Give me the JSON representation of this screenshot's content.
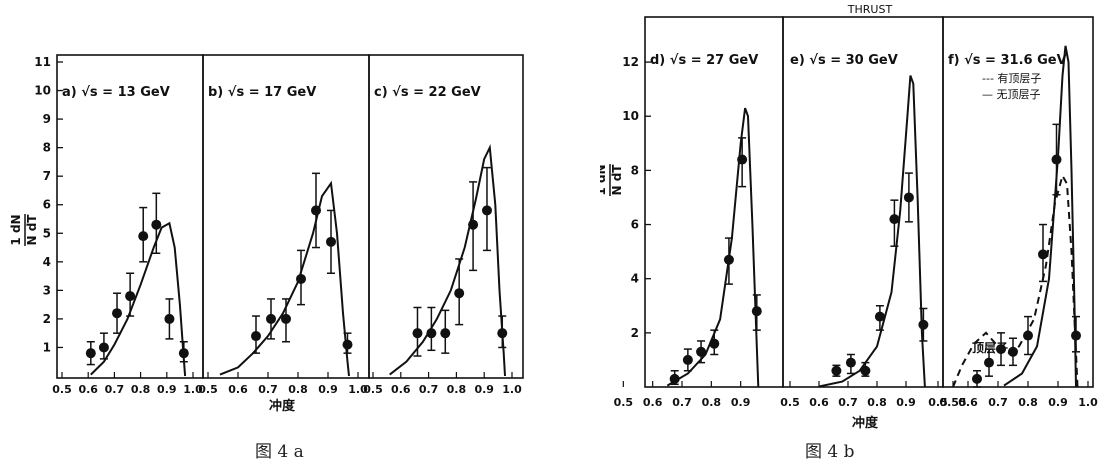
{
  "figures": [
    {
      "caption": "图 4 a",
      "xlabel": "冲度",
      "ylabel_top": "1 dN",
      "ylabel_bottom": "N dT",
      "panels": [
        {
          "label": "a) √s = 13 GeV"
        },
        {
          "label": "b) √s = 17 GeV"
        },
        {
          "label": "c) √s = 22 GeV"
        }
      ]
    },
    {
      "caption": "图 4 b",
      "title": "THRUST",
      "xlabel": "冲度",
      "ylabel_top": "1 dN",
      "ylabel_bottom": "N dT",
      "panels": [
        {
          "label": "d) √s = 27 GeV"
        },
        {
          "label": "e) √s = 30 GeV"
        },
        {
          "label": "f) √s = 31.6 GeV",
          "legend": [
            "--- 有顶层子",
            "— 无顶层子"
          ],
          "annotation": "顶层子"
        }
      ]
    }
  ],
  "chart_data": [
    {
      "type": "scatter",
      "figure": "图 4 a",
      "xlabel": "冲度",
      "ylabel": "1/N dN/dT",
      "ylim": [
        0,
        11
      ],
      "y_ticks": [
        1,
        2,
        3,
        4,
        5,
        6,
        7,
        8,
        9,
        10,
        11
      ],
      "panels": [
        {
          "label": "a) √s = 13 GeV",
          "xlim": [
            0.5,
            1.0
          ],
          "x_ticks": [
            0.5,
            0.6,
            0.7,
            0.8,
            0.9,
            1.0
          ],
          "points": [
            {
              "x": 0.61,
              "y": 0.8,
              "lo": 0.4,
              "hi": 1.2
            },
            {
              "x": 0.66,
              "y": 1.0,
              "lo": 0.6,
              "hi": 1.5
            },
            {
              "x": 0.71,
              "y": 2.2,
              "lo": 1.5,
              "hi": 2.9
            },
            {
              "x": 0.76,
              "y": 2.8,
              "lo": 2.1,
              "hi": 3.6
            },
            {
              "x": 0.81,
              "y": 4.9,
              "lo": 4.0,
              "hi": 5.9
            },
            {
              "x": 0.86,
              "y": 5.3,
              "lo": 4.3,
              "hi": 6.4
            },
            {
              "x": 0.91,
              "y": 2.0,
              "lo": 1.3,
              "hi": 2.7
            },
            {
              "x": 0.965,
              "y": 0.8,
              "lo": 0.5,
              "hi": 1.2
            }
          ],
          "curves": [
            {
              "style": "solid",
              "points": [
                [
                  0.61,
                  0.05
                ],
                [
                  0.66,
                  0.5
                ],
                [
                  0.7,
                  1.1
                ],
                [
                  0.75,
                  2.0
                ],
                [
                  0.8,
                  3.2
                ],
                [
                  0.85,
                  4.5
                ],
                [
                  0.88,
                  5.2
                ],
                [
                  0.91,
                  5.35
                ],
                [
                  0.93,
                  4.5
                ],
                [
                  0.95,
                  2.5
                ],
                [
                  0.965,
                  0.6
                ],
                [
                  0.97,
                  0.0
                ]
              ]
            }
          ]
        },
        {
          "label": "b) √s = 17 GeV",
          "xlim": [
            0.5,
            1.0
          ],
          "x_ticks": [
            0.5,
            0.6,
            0.7,
            0.8,
            0.9,
            1.0
          ],
          "points": [
            {
              "x": 0.66,
              "y": 1.4,
              "lo": 0.8,
              "hi": 2.1
            },
            {
              "x": 0.71,
              "y": 2.0,
              "lo": 1.3,
              "hi": 2.7
            },
            {
              "x": 0.76,
              "y": 2.0,
              "lo": 1.2,
              "hi": 2.7
            },
            {
              "x": 0.81,
              "y": 3.4,
              "lo": 2.5,
              "hi": 4.4
            },
            {
              "x": 0.86,
              "y": 5.8,
              "lo": 4.5,
              "hi": 7.1
            },
            {
              "x": 0.91,
              "y": 4.7,
              "lo": 3.6,
              "hi": 5.8
            },
            {
              "x": 0.965,
              "y": 1.1,
              "lo": 0.8,
              "hi": 1.5
            }
          ],
          "curves": [
            {
              "style": "solid",
              "points": [
                [
                  0.54,
                  0.05
                ],
                [
                  0.6,
                  0.3
                ],
                [
                  0.65,
                  0.8
                ],
                [
                  0.7,
                  1.4
                ],
                [
                  0.75,
                  2.2
                ],
                [
                  0.8,
                  3.3
                ],
                [
                  0.85,
                  5.0
                ],
                [
                  0.88,
                  6.3
                ],
                [
                  0.91,
                  6.75
                ],
                [
                  0.93,
                  5.0
                ],
                [
                  0.95,
                  2.2
                ],
                [
                  0.965,
                  0.5
                ],
                [
                  0.97,
                  0.0
                ]
              ]
            }
          ]
        },
        {
          "label": "c) √s = 22 GeV",
          "xlim": [
            0.5,
            1.0
          ],
          "x_ticks": [
            0.5,
            0.6,
            0.7,
            0.8,
            0.9,
            1.0
          ],
          "points": [
            {
              "x": 0.66,
              "y": 1.5,
              "lo": 0.7,
              "hi": 2.4
            },
            {
              "x": 0.71,
              "y": 1.5,
              "lo": 0.9,
              "hi": 2.4
            },
            {
              "x": 0.76,
              "y": 1.5,
              "lo": 0.8,
              "hi": 2.3
            },
            {
              "x": 0.81,
              "y": 2.9,
              "lo": 1.8,
              "hi": 4.1
            },
            {
              "x": 0.86,
              "y": 5.3,
              "lo": 3.7,
              "hi": 6.8
            },
            {
              "x": 0.91,
              "y": 5.8,
              "lo": 4.4,
              "hi": 7.3
            },
            {
              "x": 0.965,
              "y": 1.5,
              "lo": 1.0,
              "hi": 2.1
            }
          ],
          "curves": [
            {
              "style": "solid",
              "points": [
                [
                  0.56,
                  0.05
                ],
                [
                  0.62,
                  0.5
                ],
                [
                  0.68,
                  1.2
                ],
                [
                  0.73,
                  2.0
                ],
                [
                  0.78,
                  3.0
                ],
                [
                  0.83,
                  4.5
                ],
                [
                  0.87,
                  6.2
                ],
                [
                  0.9,
                  7.6
                ],
                [
                  0.92,
                  8.0
                ],
                [
                  0.94,
                  6.0
                ],
                [
                  0.955,
                  3.0
                ],
                [
                  0.97,
                  0.8
                ],
                [
                  0.975,
                  0.0
                ]
              ]
            }
          ]
        }
      ]
    },
    {
      "type": "scatter",
      "figure": "图 4 b",
      "title": "THRUST",
      "xlabel": "冲度",
      "ylabel": "1/N dN/dT",
      "ylim": [
        0,
        13
      ],
      "y_ticks": [
        2,
        4,
        6,
        8,
        10,
        12
      ],
      "panels": [
        {
          "label": "d) √s = 27 GeV",
          "xlim": [
            0.55,
            1.0
          ],
          "x_ticks": [
            0.5,
            0.6,
            0.7,
            0.8,
            0.9
          ],
          "points": [
            {
              "x": 0.675,
              "y": 0.3,
              "lo": 0.1,
              "hi": 0.6
            },
            {
              "x": 0.72,
              "y": 1.0,
              "lo": 0.6,
              "hi": 1.4
            },
            {
              "x": 0.765,
              "y": 1.3,
              "lo": 0.9,
              "hi": 1.7
            },
            {
              "x": 0.81,
              "y": 1.6,
              "lo": 1.2,
              "hi": 2.1
            },
            {
              "x": 0.86,
              "y": 4.7,
              "lo": 3.8,
              "hi": 5.5
            },
            {
              "x": 0.905,
              "y": 8.4,
              "lo": 7.4,
              "hi": 9.2
            },
            {
              "x": 0.955,
              "y": 2.8,
              "lo": 2.1,
              "hi": 3.4
            }
          ],
          "curves": [
            {
              "style": "solid",
              "points": [
                [
                  0.65,
                  0.05
                ],
                [
                  0.72,
                  0.5
                ],
                [
                  0.78,
                  1.2
                ],
                [
                  0.83,
                  2.5
                ],
                [
                  0.87,
                  5.5
                ],
                [
                  0.9,
                  9.0
                ],
                [
                  0.915,
                  10.3
                ],
                [
                  0.925,
                  10.0
                ],
                [
                  0.94,
                  6.0
                ],
                [
                  0.955,
                  1.5
                ],
                [
                  0.96,
                  0.0
                ]
              ]
            }
          ]
        },
        {
          "label": "e) √s = 30 GeV",
          "xlim": [
            0.5,
            1.0
          ],
          "x_ticks": [
            0.5,
            0.6,
            0.7,
            0.8,
            0.9
          ],
          "points": [
            {
              "x": 0.66,
              "y": 0.6,
              "lo": 0.4,
              "hi": 0.8
            },
            {
              "x": 0.71,
              "y": 0.9,
              "lo": 0.5,
              "hi": 1.2
            },
            {
              "x": 0.76,
              "y": 0.6,
              "lo": 0.4,
              "hi": 0.9
            },
            {
              "x": 0.81,
              "y": 2.6,
              "lo": 2.1,
              "hi": 3.0
            },
            {
              "x": 0.86,
              "y": 6.2,
              "lo": 5.2,
              "hi": 6.9
            },
            {
              "x": 0.91,
              "y": 7.0,
              "lo": 6.1,
              "hi": 7.9
            },
            {
              "x": 0.96,
              "y": 2.3,
              "lo": 1.7,
              "hi": 2.9
            }
          ],
          "curves": [
            {
              "style": "solid",
              "points": [
                [
                  0.6,
                  0.02
                ],
                [
                  0.68,
                  0.2
                ],
                [
                  0.74,
                  0.6
                ],
                [
                  0.8,
                  1.5
                ],
                [
                  0.85,
                  3.5
                ],
                [
                  0.88,
                  6.5
                ],
                [
                  0.905,
                  10.0
                ],
                [
                  0.915,
                  11.5
                ],
                [
                  0.925,
                  11.2
                ],
                [
                  0.94,
                  7.0
                ],
                [
                  0.955,
                  2.0
                ],
                [
                  0.965,
                  0.0
                ]
              ]
            }
          ]
        },
        {
          "label": "f) √s = 31.6 GeV",
          "xlim": [
            0.5,
            1.0
          ],
          "x_ticks": [
            0.5,
            0.55,
            0.6,
            0.7,
            0.8,
            0.9,
            1.0
          ],
          "points": [
            {
              "x": 0.63,
              "y": 0.3,
              "lo": 0.0,
              "hi": 0.6
            },
            {
              "x": 0.67,
              "y": 0.9,
              "lo": 0.4,
              "hi": 1.4
            },
            {
              "x": 0.71,
              "y": 1.4,
              "lo": 0.8,
              "hi": 2.0
            },
            {
              "x": 0.75,
              "y": 1.3,
              "lo": 0.8,
              "hi": 1.8
            },
            {
              "x": 0.8,
              "y": 1.9,
              "lo": 1.2,
              "hi": 2.6
            },
            {
              "x": 0.85,
              "y": 4.9,
              "lo": 3.9,
              "hi": 6.0
            },
            {
              "x": 0.895,
              "y": 8.4,
              "lo": 7.1,
              "hi": 9.7
            },
            {
              "x": 0.96,
              "y": 1.9,
              "lo": 1.3,
              "hi": 2.6
            }
          ],
          "curves": [
            {
              "style": "solid",
              "name": "无顶层子",
              "points": [
                [
                  0.72,
                  0.05
                ],
                [
                  0.78,
                  0.5
                ],
                [
                  0.83,
                  1.5
                ],
                [
                  0.87,
                  4.0
                ],
                [
                  0.9,
                  8.5
                ],
                [
                  0.915,
                  11.5
                ],
                [
                  0.925,
                  12.6
                ],
                [
                  0.935,
                  12.0
                ],
                [
                  0.945,
                  8.0
                ],
                [
                  0.955,
                  3.0
                ],
                [
                  0.96,
                  0.0
                ]
              ]
            },
            {
              "style": "dashed",
              "name": "有顶层子",
              "points": [
                [
                  0.55,
                  0.0
                ],
                [
                  0.58,
                  0.8
                ],
                [
                  0.62,
                  1.6
                ],
                [
                  0.66,
                  2.0
                ],
                [
                  0.7,
                  1.5
                ],
                [
                  0.73,
                  1.2
                ],
                [
                  0.77,
                  1.5
                ],
                [
                  0.82,
                  2.5
                ],
                [
                  0.86,
                  4.5
                ],
                [
                  0.89,
                  6.8
                ],
                [
                  0.915,
                  7.8
                ],
                [
                  0.93,
                  7.5
                ],
                [
                  0.945,
                  5.0
                ],
                [
                  0.955,
                  2.5
                ],
                [
                  0.965,
                  0.0
                ]
              ]
            }
          ]
        }
      ]
    }
  ]
}
